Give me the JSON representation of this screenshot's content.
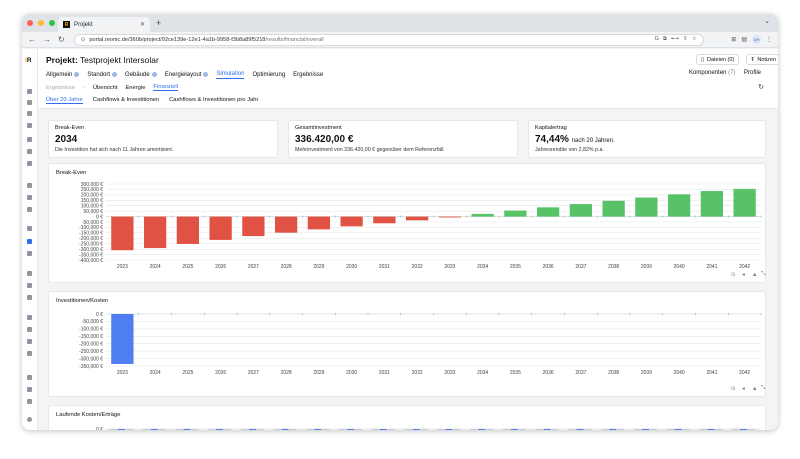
{
  "browser": {
    "tab_title": "Projekt",
    "favicon_text": "R",
    "url": "portal.reonic.de/360b/project/92ce139e-12e1-4a1b-9958-f3b8a89f5218",
    "url_tail": "/results/financial/overall",
    "profile_initials": "UH"
  },
  "project": {
    "title_prefix": "Projekt:",
    "title": "Testprojekt Intersolar"
  },
  "header_buttons": {
    "files": "Dateien (0)",
    "notes": "Notizen"
  },
  "main_tabs": [
    {
      "label": "Allgemein",
      "dot": true
    },
    {
      "label": "Standort",
      "dot": true
    },
    {
      "label": "Gebäude",
      "dot": true
    },
    {
      "label": "Energielayout",
      "dot": true
    },
    {
      "label": "Simulation",
      "dot": false,
      "active": true
    },
    {
      "label": "Optimierung",
      "dot": false
    },
    {
      "label": "Ergebnisse",
      "dot": false
    }
  ],
  "right_links": {
    "components": "Komponenten",
    "components_count": "(7)",
    "profile": "Profile"
  },
  "sub_nav": {
    "crumb": "Ergebnisse",
    "items": [
      "Übersicht",
      "Energie",
      "Finanziell"
    ],
    "active": 2
  },
  "period_tabs": {
    "items": [
      "Über 20 Jahre",
      "Cashflows & Investitionen",
      "Cashflows & Investitionen pro Jahr"
    ],
    "active": 0
  },
  "kpis": [
    {
      "label": "Break-Even",
      "value": "2034",
      "suffix": "",
      "desc": "Die Investition hat sich nach 11 Jahren amortisiert."
    },
    {
      "label": "Gesamtinvestment",
      "value": "336.420,00 €",
      "suffix": "",
      "desc": "Mehrinvestment von 336.420,00 € gegenüber dem Referenzfall."
    },
    {
      "label": "Kapitalertrag",
      "value": "74,44%",
      "suffix": "nach 20 Jahren.",
      "desc": "Jahresrendite von 2,82% p.a."
    }
  ],
  "colors": {
    "negative": "#e05344",
    "positive": "#57c266",
    "investment": "#4f7ef0",
    "grid": "#e5e7eb"
  },
  "chart_data": [
    {
      "type": "bar",
      "title": "Break-Even",
      "categories": [
        "2023",
        "2024",
        "2025",
        "2026",
        "2027",
        "2028",
        "2029",
        "2030",
        "2031",
        "2032",
        "2033",
        "2034",
        "2035",
        "2036",
        "2037",
        "2038",
        "2039",
        "2040",
        "2041",
        "2042"
      ],
      "values": [
        -310000,
        -290000,
        -252000,
        -215000,
        -180000,
        -148000,
        -118000,
        -90000,
        -62000,
        -35000,
        -8000,
        25000,
        55000,
        85000,
        115000,
        145000,
        175000,
        205000,
        235000,
        255000
      ],
      "yticks": [
        "300,000 €",
        "250,000 €",
        "200,000 €",
        "150,000 €",
        "100,000 €",
        "50,000 €",
        "0 €",
        "-50,000 €",
        "-100,000 €",
        "-150,000 €",
        "-200,000 €",
        "-250,000 €",
        "-300,000 €",
        "-350,000 €",
        "-400,000 €"
      ],
      "ylim": [
        -400000,
        300000
      ]
    },
    {
      "type": "bar",
      "title": "Investitionen/Kosten",
      "categories": [
        "2023",
        "2024",
        "2025",
        "2026",
        "2027",
        "2028",
        "2029",
        "2030",
        "2031",
        "2032",
        "2033",
        "2034",
        "2035",
        "2036",
        "2037",
        "2038",
        "2039",
        "2040",
        "2041",
        "2042"
      ],
      "values": [
        -336420,
        0,
        0,
        0,
        0,
        0,
        0,
        0,
        0,
        0,
        0,
        0,
        0,
        0,
        0,
        0,
        0,
        0,
        0,
        0
      ],
      "yticks": [
        "0 €",
        "-50,000 €",
        "-100,000 €",
        "-150,000 €",
        "-200,000 €",
        "-250,000 €",
        "-300,000 €",
        "-350,000 €"
      ],
      "ylim": [
        -350000,
        0
      ]
    },
    {
      "type": "bar",
      "title": "Laufende Kosten/Erträge",
      "yticks": [
        "0 €"
      ]
    }
  ]
}
